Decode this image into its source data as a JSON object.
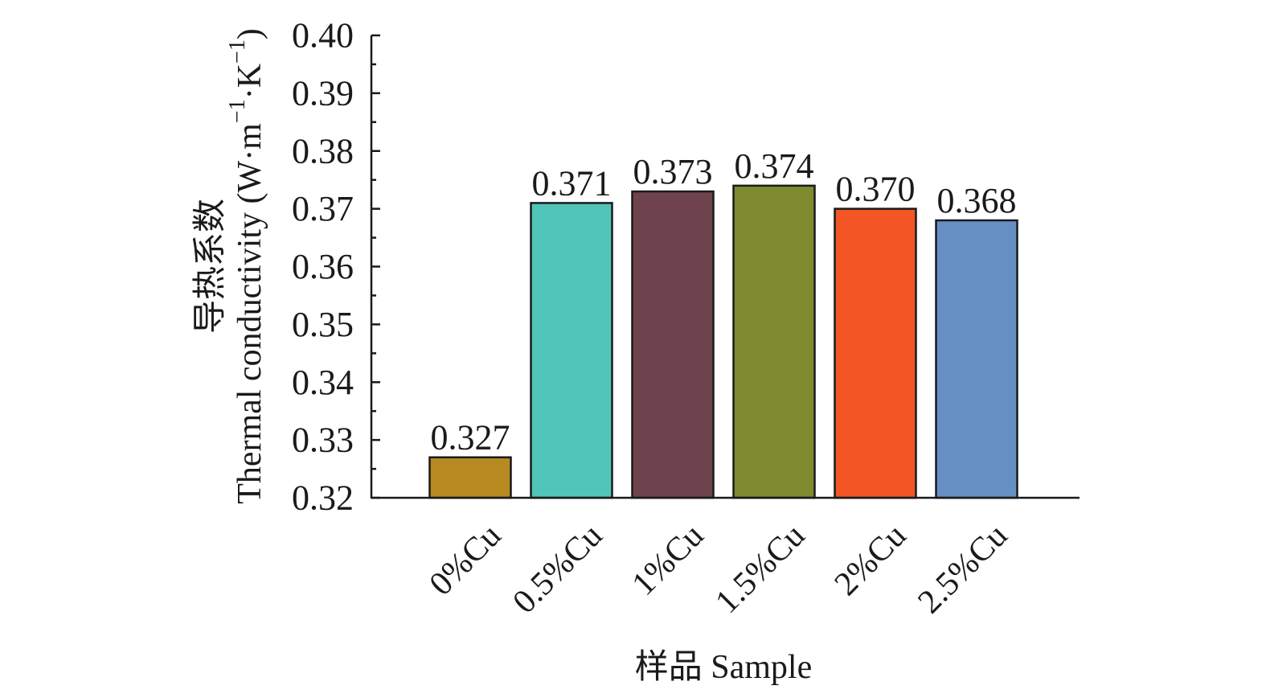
{
  "chart_data": {
    "type": "bar",
    "categories": [
      "0%Cu",
      "0.5%Cu",
      "1%Cu",
      "1.5%Cu",
      "2%Cu",
      "2.5%Cu"
    ],
    "values": [
      0.327,
      0.371,
      0.373,
      0.374,
      0.37,
      0.368
    ],
    "data_labels": [
      "0.327",
      "0.371",
      "0.373",
      "0.374",
      "0.370",
      "0.368"
    ],
    "colors": [
      "#B88A22",
      "#52C5B9",
      "#6E434E",
      "#7E8B2F",
      "#F25624",
      "#6690C4"
    ],
    "ylim": [
      0.32,
      0.4
    ],
    "yticks": [
      "0.32",
      "0.33",
      "0.34",
      "0.35",
      "0.36",
      "0.37",
      "0.38",
      "0.39",
      "0.40"
    ],
    "ylabel_line1": "导热系数",
    "ylabel_line2": "Thermal conductivity (W·m",
    "ylabel_sup1": "−1",
    "ylabel_mid": "·K",
    "ylabel_sup2": "−1",
    "ylabel_end": ")",
    "xlabel": "样品 Sample",
    "grid": false,
    "legend": "none"
  }
}
